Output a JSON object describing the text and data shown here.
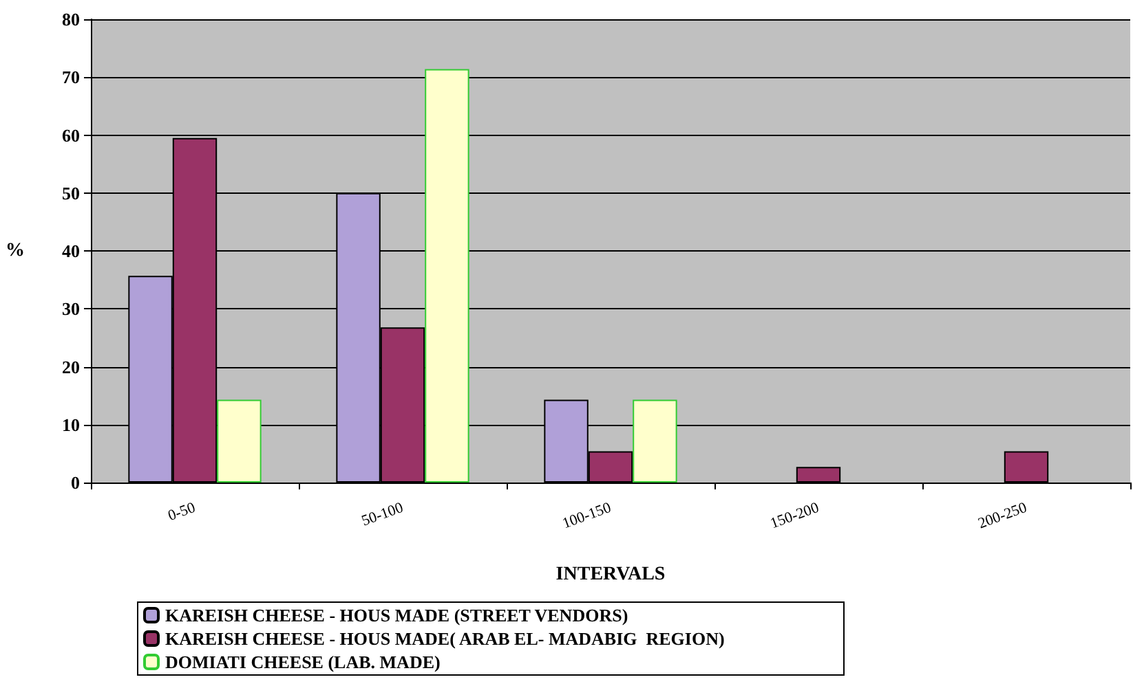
{
  "chart_data": {
    "type": "bar",
    "xlabel": "INTERVALS",
    "ylabel": "%",
    "categories": [
      "0-50",
      "50-100",
      "100-150",
      "150-200",
      "200-250"
    ],
    "series": [
      {
        "name": "KAREISH CHEESE - HOUS MADE (STREET VENDORS)",
        "color": "#b0a0d8",
        "values": [
          35.7,
          50,
          14.3,
          null,
          null
        ]
      },
      {
        "name": "KAREISH CHEESE - HOUS MADE( ARAB EL- MADABIG  REGION)",
        "color": "#993366",
        "values": [
          59.5,
          26.8,
          5.4,
          2.7,
          5.4
        ]
      },
      {
        "name": "DOMIATI CHEESE (LAB. MADE)",
        "color": "#ffffcc",
        "values": [
          14.3,
          71.4,
          14.3,
          null,
          null
        ]
      }
    ],
    "ylim": [
      0,
      80
    ],
    "yticks": [
      0,
      10,
      20,
      30,
      40,
      50,
      60,
      70,
      80
    ],
    "grid": "y",
    "legend": "bottom"
  }
}
